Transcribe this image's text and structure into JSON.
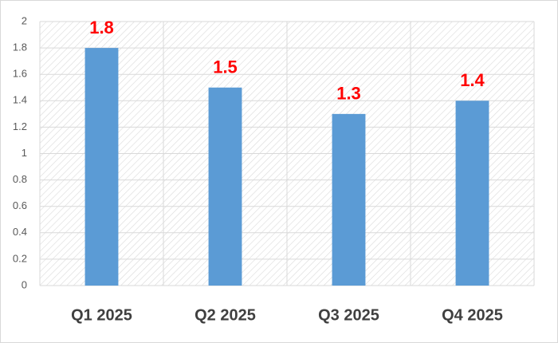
{
  "chart_data": {
    "type": "bar",
    "categories": [
      "Q1 2025",
      "Q2 2025",
      "Q3 2025",
      "Q4 2025"
    ],
    "values": [
      1.8,
      1.5,
      1.3,
      1.4
    ],
    "color": "#5b9bd5",
    "label_color": "#ff0000",
    "ylim": [
      0,
      2
    ],
    "yticks": [
      0,
      0.2,
      0.4,
      0.6,
      0.8,
      1,
      1.2,
      1.4,
      1.6,
      1.8,
      2
    ],
    "grid": true
  }
}
